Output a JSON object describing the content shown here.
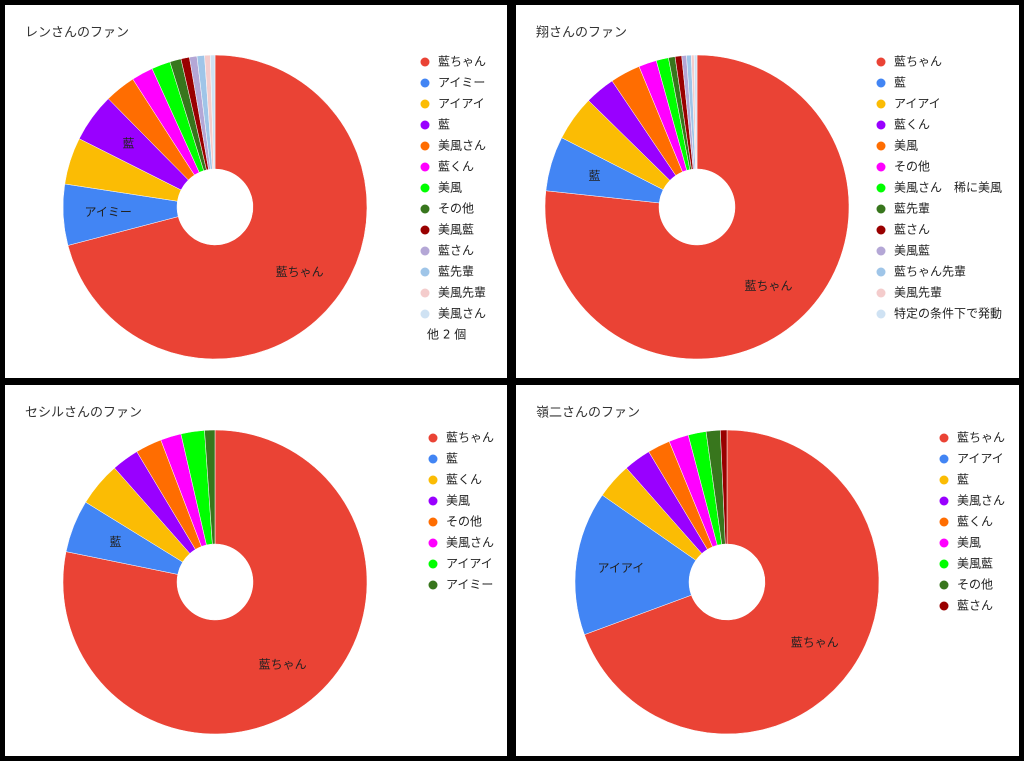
{
  "chart_data": [
    {
      "type": "donut",
      "title": "レンさんのファン",
      "categories": [
        "藍ちゃん",
        "アイミー",
        "アイアイ",
        "藍",
        "美風さん",
        "藍くん",
        "美風",
        "その他",
        "美風藍",
        "藍さん",
        "藍先輩",
        "美風先輩",
        "美風さん"
      ],
      "values": [
        71,
        6.5,
        5,
        5.2,
        3.3,
        2.3,
        2,
        1.2,
        0.9,
        0.8,
        0.8,
        0.6,
        0.5
      ],
      "colors": [
        "#ea4335",
        "#4285f4",
        "#fbbc04",
        "#9900ff",
        "#ff6d01",
        "#ff00ff",
        "#00ff00",
        "#38761d",
        "#990000",
        "#b4a7d6",
        "#9fc5e8",
        "#f4cccc",
        "#cfe2f3"
      ],
      "legend_more": "他 2 個"
    },
    {
      "type": "donut",
      "title": "翔さんのファン",
      "categories": [
        "藍ちゃん",
        "藍",
        "アイアイ",
        "藍くん",
        "美風",
        "その他",
        "美風さん　稀に美風",
        "藍先輩",
        "藍さん",
        "美風藍",
        "藍ちゃん先輩",
        "美風先輩",
        "特定の条件下で発動"
      ],
      "values": [
        76.4,
        5.8,
        4.8,
        3.2,
        3.2,
        1.9,
        1.3,
        0.7,
        0.7,
        0.5,
        0.5,
        0.3,
        0.3
      ],
      "colors": [
        "#ea4335",
        "#4285f4",
        "#fbbc04",
        "#9900ff",
        "#ff6d01",
        "#ff00ff",
        "#00ff00",
        "#38761d",
        "#990000",
        "#b4a7d6",
        "#9fc5e8",
        "#f4cccc",
        "#cfe2f3"
      ]
    },
    {
      "type": "donut",
      "title": "セシルさんのファン",
      "categories": [
        "藍ちゃん",
        "藍",
        "藍くん",
        "美風",
        "その他",
        "美風さん",
        "アイアイ",
        "アイミー"
      ],
      "values": [
        78.2,
        5.6,
        4.7,
        2.9,
        2.8,
        2.2,
        2.5,
        1.1
      ],
      "colors": [
        "#ea4335",
        "#4285f4",
        "#fbbc04",
        "#9900ff",
        "#ff6d01",
        "#ff00ff",
        "#00ff00",
        "#38761d"
      ]
    },
    {
      "type": "donut",
      "title": "嶺二さんのファン",
      "categories": [
        "藍ちゃん",
        "アイアイ",
        "藍",
        "美風さん",
        "藍くん",
        "美風",
        "美風藍",
        "その他",
        "藍さん"
      ],
      "values": [
        69.3,
        15.3,
        3.8,
        2.9,
        2.4,
        2.1,
        1.9,
        1.5,
        0.7
      ],
      "colors": [
        "#ea4335",
        "#4285f4",
        "#fbbc04",
        "#9900ff",
        "#ff6d01",
        "#ff00ff",
        "#00ff00",
        "#38761d",
        "#990000"
      ]
    }
  ]
}
